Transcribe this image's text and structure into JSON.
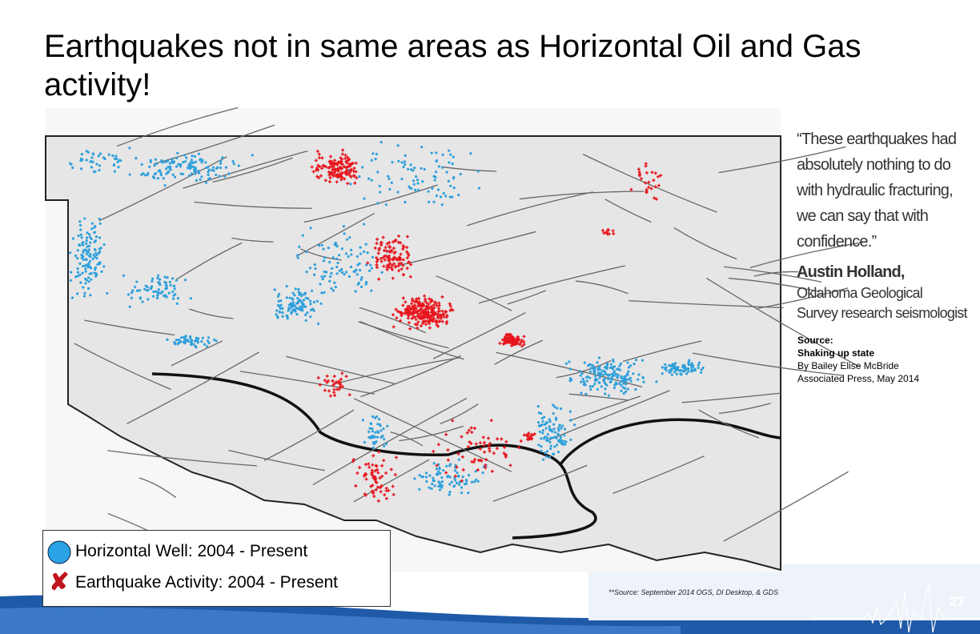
{
  "title": "Earthquakes not in same areas as Horizontal Oil and Gas activity!",
  "quote": {
    "lines": [
      "“These earthquakes had",
      "absolutely nothing to do",
      "with hydraulic fracturing,",
      "we can say that with",
      "confidence.”"
    ],
    "author": "Austin Holland,",
    "role_lines": [
      "Oklahoma Geological",
      "Survey research seismologist"
    ]
  },
  "source": {
    "label": "Source:",
    "headline": "Shaking up state",
    "byline": "By Bailey Elise McBride",
    "publisher": "Associated Press, May 2014"
  },
  "legend": [
    "Horizontal Well: 2004 - Present",
    "Earthquake Activity: 2004 - Present"
  ],
  "footnote": "**Source:  September 2014 OGS, DI Desktop, & GDS",
  "page_number": "27"
}
